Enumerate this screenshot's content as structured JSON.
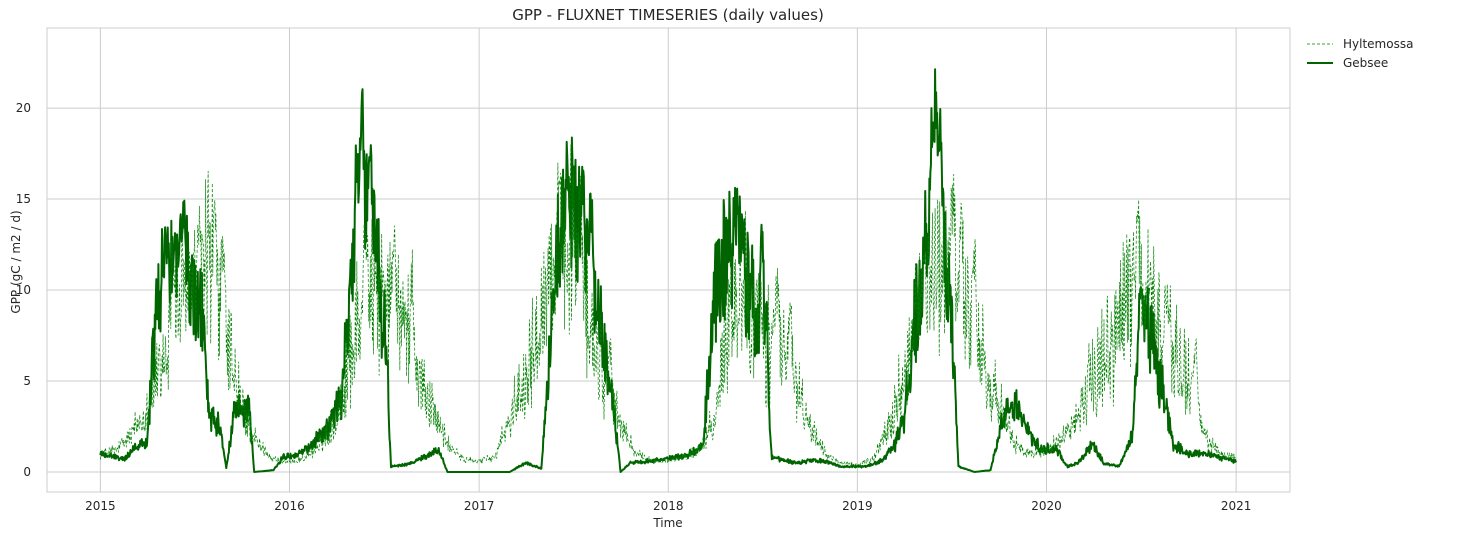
{
  "chart_data": {
    "type": "line",
    "title": "GPP - FLUXNET TIMESERIES (daily values)",
    "xlabel": "Time",
    "ylabel": "GPP (gC / m2 / d)",
    "xlim": [
      "2014-09-20",
      "2021-04-15"
    ],
    "ylim": [
      -1.1,
      24.4
    ],
    "xticks": [
      "2015",
      "2016",
      "2017",
      "2018",
      "2019",
      "2020",
      "2021"
    ],
    "yticks": [
      0,
      5,
      10,
      15,
      20
    ],
    "grid": true,
    "legend_placement": "outside top-right",
    "series": [
      {
        "name": "Hyltemossa",
        "color": "#008000",
        "line_style": "dashed",
        "anchors": [
          [
            "2015-01-01",
            1.0
          ],
          [
            "2015-02-01",
            1.2
          ],
          [
            "2015-03-01",
            2.0
          ],
          [
            "2015-04-01",
            3.5
          ],
          [
            "2015-05-01",
            6.0
          ],
          [
            "2015-06-01",
            9.0
          ],
          [
            "2015-07-01",
            10.5
          ],
          [
            "2015-08-01",
            12.0
          ],
          [
            "2015-09-01",
            7.0
          ],
          [
            "2015-10-01",
            3.5
          ],
          [
            "2015-11-01",
            1.5
          ],
          [
            "2015-12-01",
            0.7
          ],
          [
            "2016-01-01",
            0.5
          ],
          [
            "2016-02-01",
            0.8
          ],
          [
            "2016-03-01",
            1.5
          ],
          [
            "2016-04-01",
            3.0
          ],
          [
            "2016-05-01",
            7.0
          ],
          [
            "2016-06-01",
            10.0
          ],
          [
            "2016-07-01",
            9.5
          ],
          [
            "2016-08-01",
            9.0
          ],
          [
            "2016-09-01",
            6.0
          ],
          [
            "2016-10-01",
            3.5
          ],
          [
            "2016-11-01",
            1.5
          ],
          [
            "2016-12-01",
            0.7
          ],
          [
            "2017-01-01",
            0.6
          ],
          [
            "2017-02-01",
            0.8
          ],
          [
            "2017-03-01",
            3.0
          ],
          [
            "2017-04-01",
            5.5
          ],
          [
            "2017-05-01",
            9.0
          ],
          [
            "2017-06-01",
            12.5
          ],
          [
            "2017-07-01",
            13.0
          ],
          [
            "2017-08-01",
            8.0
          ],
          [
            "2017-09-01",
            5.0
          ],
          [
            "2017-10-01",
            2.5
          ],
          [
            "2017-11-01",
            1.0
          ],
          [
            "2017-12-01",
            0.6
          ],
          [
            "2018-01-01",
            0.6
          ],
          [
            "2018-02-01",
            0.8
          ],
          [
            "2018-03-01",
            1.2
          ],
          [
            "2018-04-01",
            3.0
          ],
          [
            "2018-05-01",
            9.0
          ],
          [
            "2018-06-01",
            10.0
          ],
          [
            "2018-07-01",
            7.0
          ],
          [
            "2018-08-01",
            7.5
          ],
          [
            "2018-09-01",
            5.0
          ],
          [
            "2018-10-01",
            2.5
          ],
          [
            "2018-11-01",
            1.0
          ],
          [
            "2018-12-01",
            0.5
          ],
          [
            "2019-01-01",
            0.4
          ],
          [
            "2019-02-01",
            0.7
          ],
          [
            "2019-03-01",
            2.5
          ],
          [
            "2019-04-01",
            5.0
          ],
          [
            "2019-05-01",
            9.0
          ],
          [
            "2019-06-01",
            11.0
          ],
          [
            "2019-07-01",
            11.5
          ],
          [
            "2019-08-01",
            8.5
          ],
          [
            "2019-09-01",
            6.0
          ],
          [
            "2019-10-01",
            3.5
          ],
          [
            "2019-11-01",
            1.5
          ],
          [
            "2019-12-01",
            1.0
          ],
          [
            "2020-01-01",
            1.2
          ],
          [
            "2020-02-01",
            1.8
          ],
          [
            "2020-03-01",
            3.0
          ],
          [
            "2020-04-01",
            5.0
          ],
          [
            "2020-05-01",
            7.0
          ],
          [
            "2020-06-01",
            9.5
          ],
          [
            "2020-07-01",
            10.0
          ],
          [
            "2020-08-01",
            8.5
          ],
          [
            "2020-09-01",
            6.5
          ],
          [
            "2020-10-01",
            5.0
          ],
          [
            "2020-11-01",
            2.0
          ],
          [
            "2020-12-01",
            1.0
          ],
          [
            "2021-01-01",
            0.8
          ]
        ],
        "noise_amplitude": 0.35,
        "peaks": [
          [
            "2015-05-20",
            13.5
          ],
          [
            "2015-07-10",
            14.5
          ],
          [
            "2015-08-10",
            15.5
          ],
          [
            "2015-08-25",
            13.5
          ],
          [
            "2016-05-25",
            15.5
          ],
          [
            "2016-07-20",
            14.0
          ],
          [
            "2016-08-25",
            12.5
          ],
          [
            "2017-06-05",
            16.0
          ],
          [
            "2017-07-15",
            17.0
          ],
          [
            "2017-09-10",
            8.0
          ],
          [
            "2018-06-20",
            10.5
          ],
          [
            "2018-07-30",
            11.5
          ],
          [
            "2018-08-25",
            10.0
          ],
          [
            "2019-05-10",
            12.5
          ],
          [
            "2019-07-05",
            16.7
          ],
          [
            "2019-07-20",
            15.5
          ],
          [
            "2019-08-15",
            14.0
          ],
          [
            "2020-06-25",
            15.8
          ],
          [
            "2020-07-20",
            11.5
          ],
          [
            "2020-08-20",
            10.5
          ],
          [
            "2020-10-15",
            8.0
          ]
        ]
      },
      {
        "name": "Gebsee",
        "color": "#006400",
        "line_style": "solid",
        "anchors": [
          [
            "2015-01-01",
            1.0
          ],
          [
            "2015-02-15",
            0.7
          ],
          [
            "2015-03-15",
            1.5
          ],
          [
            "2015-04-01",
            1.8
          ],
          [
            "2015-04-20",
            9.5
          ],
          [
            "2015-05-15",
            11.5
          ],
          [
            "2015-06-15",
            11.0
          ],
          [
            "2015-07-15",
            8.5
          ],
          [
            "2015-08-01",
            3.0
          ],
          [
            "2015-08-20",
            2.5
          ],
          [
            "2015-09-01",
            0.2
          ],
          [
            "2015-09-15",
            3.0
          ],
          [
            "2015-10-15",
            3.5
          ],
          [
            "2015-10-25",
            0.0
          ],
          [
            "2015-12-01",
            0.1
          ],
          [
            "2015-12-20",
            0.8
          ],
          [
            "2016-01-15",
            0.9
          ],
          [
            "2016-02-15",
            1.5
          ],
          [
            "2016-03-15",
            2.5
          ],
          [
            "2016-04-10",
            4.0
          ],
          [
            "2016-05-01",
            11.0
          ],
          [
            "2016-05-25",
            15.0
          ],
          [
            "2016-06-20",
            12.0
          ],
          [
            "2016-07-05",
            7.0
          ],
          [
            "2016-07-15",
            0.3
          ],
          [
            "2016-08-15",
            0.4
          ],
          [
            "2016-09-15",
            0.8
          ],
          [
            "2016-10-15",
            1.2
          ],
          [
            "2016-11-01",
            0.0
          ],
          [
            "2017-03-01",
            0.0
          ],
          [
            "2017-04-01",
            0.5
          ],
          [
            "2017-05-01",
            0.2
          ],
          [
            "2017-06-01",
            12.0
          ],
          [
            "2017-07-01",
            14.5
          ],
          [
            "2017-08-01",
            12.0
          ],
          [
            "2017-09-01",
            6.0
          ],
          [
            "2017-09-20",
            3.0
          ],
          [
            "2017-10-01",
            0.0
          ],
          [
            "2017-10-20",
            0.5
          ],
          [
            "2017-12-01",
            0.6
          ],
          [
            "2018-01-15",
            0.8
          ],
          [
            "2018-02-15",
            1.0
          ],
          [
            "2018-03-10",
            1.5
          ],
          [
            "2018-04-01",
            10.5
          ],
          [
            "2018-05-01",
            12.0
          ],
          [
            "2018-06-01",
            11.0
          ],
          [
            "2018-06-20",
            8.0
          ],
          [
            "2018-07-10",
            3.0
          ],
          [
            "2018-07-20",
            0.8
          ],
          [
            "2018-09-01",
            0.5
          ],
          [
            "2018-10-01",
            0.6
          ],
          [
            "2018-11-01",
            0.6
          ],
          [
            "2018-12-01",
            0.3
          ],
          [
            "2019-01-15",
            0.3
          ],
          [
            "2019-02-15",
            0.6
          ],
          [
            "2019-03-15",
            1.5
          ],
          [
            "2019-04-01",
            3.0
          ],
          [
            "2019-04-20",
            8.0
          ],
          [
            "2019-05-15",
            12.0
          ],
          [
            "2019-06-10",
            14.0
          ],
          [
            "2019-07-01",
            9.0
          ],
          [
            "2019-07-15",
            0.3
          ],
          [
            "2019-08-15",
            0.0
          ],
          [
            "2019-09-15",
            0.1
          ],
          [
            "2019-10-10",
            3.0
          ],
          [
            "2019-11-01",
            4.0
          ],
          [
            "2019-12-01",
            2.0
          ],
          [
            "2019-12-20",
            1.3
          ],
          [
            "2020-01-20",
            1.2
          ],
          [
            "2020-02-10",
            0.3
          ],
          [
            "2020-03-01",
            0.5
          ],
          [
            "2020-04-01",
            1.5
          ],
          [
            "2020-04-20",
            0.5
          ],
          [
            "2020-05-20",
            0.3
          ],
          [
            "2020-06-15",
            2.0
          ],
          [
            "2020-07-01",
            9.0
          ],
          [
            "2020-07-25",
            7.0
          ],
          [
            "2020-08-15",
            4.0
          ],
          [
            "2020-09-01",
            1.5
          ],
          [
            "2020-10-01",
            1.0
          ],
          [
            "2020-11-01",
            1.0
          ],
          [
            "2020-12-01",
            0.8
          ],
          [
            "2021-01-01",
            0.6
          ]
        ],
        "noise_amplitude": 0.25,
        "peaks": [
          [
            "2015-05-05",
            13.0
          ],
          [
            "2015-05-25",
            13.5
          ],
          [
            "2015-06-10",
            15.3
          ],
          [
            "2016-05-10",
            18.5
          ],
          [
            "2016-05-20",
            21.9
          ],
          [
            "2016-06-05",
            19.0
          ],
          [
            "2017-06-20",
            18.5
          ],
          [
            "2017-07-20",
            17.5
          ],
          [
            "2017-08-05",
            16.0
          ],
          [
            "2018-05-15",
            16.5
          ],
          [
            "2018-07-01",
            16.5
          ],
          [
            "2018-07-10",
            10.5
          ],
          [
            "2019-05-25",
            20.5
          ],
          [
            "2019-06-01",
            23.3
          ],
          [
            "2019-06-10",
            20.0
          ],
          [
            "2020-07-01",
            10.2
          ]
        ]
      }
    ]
  }
}
